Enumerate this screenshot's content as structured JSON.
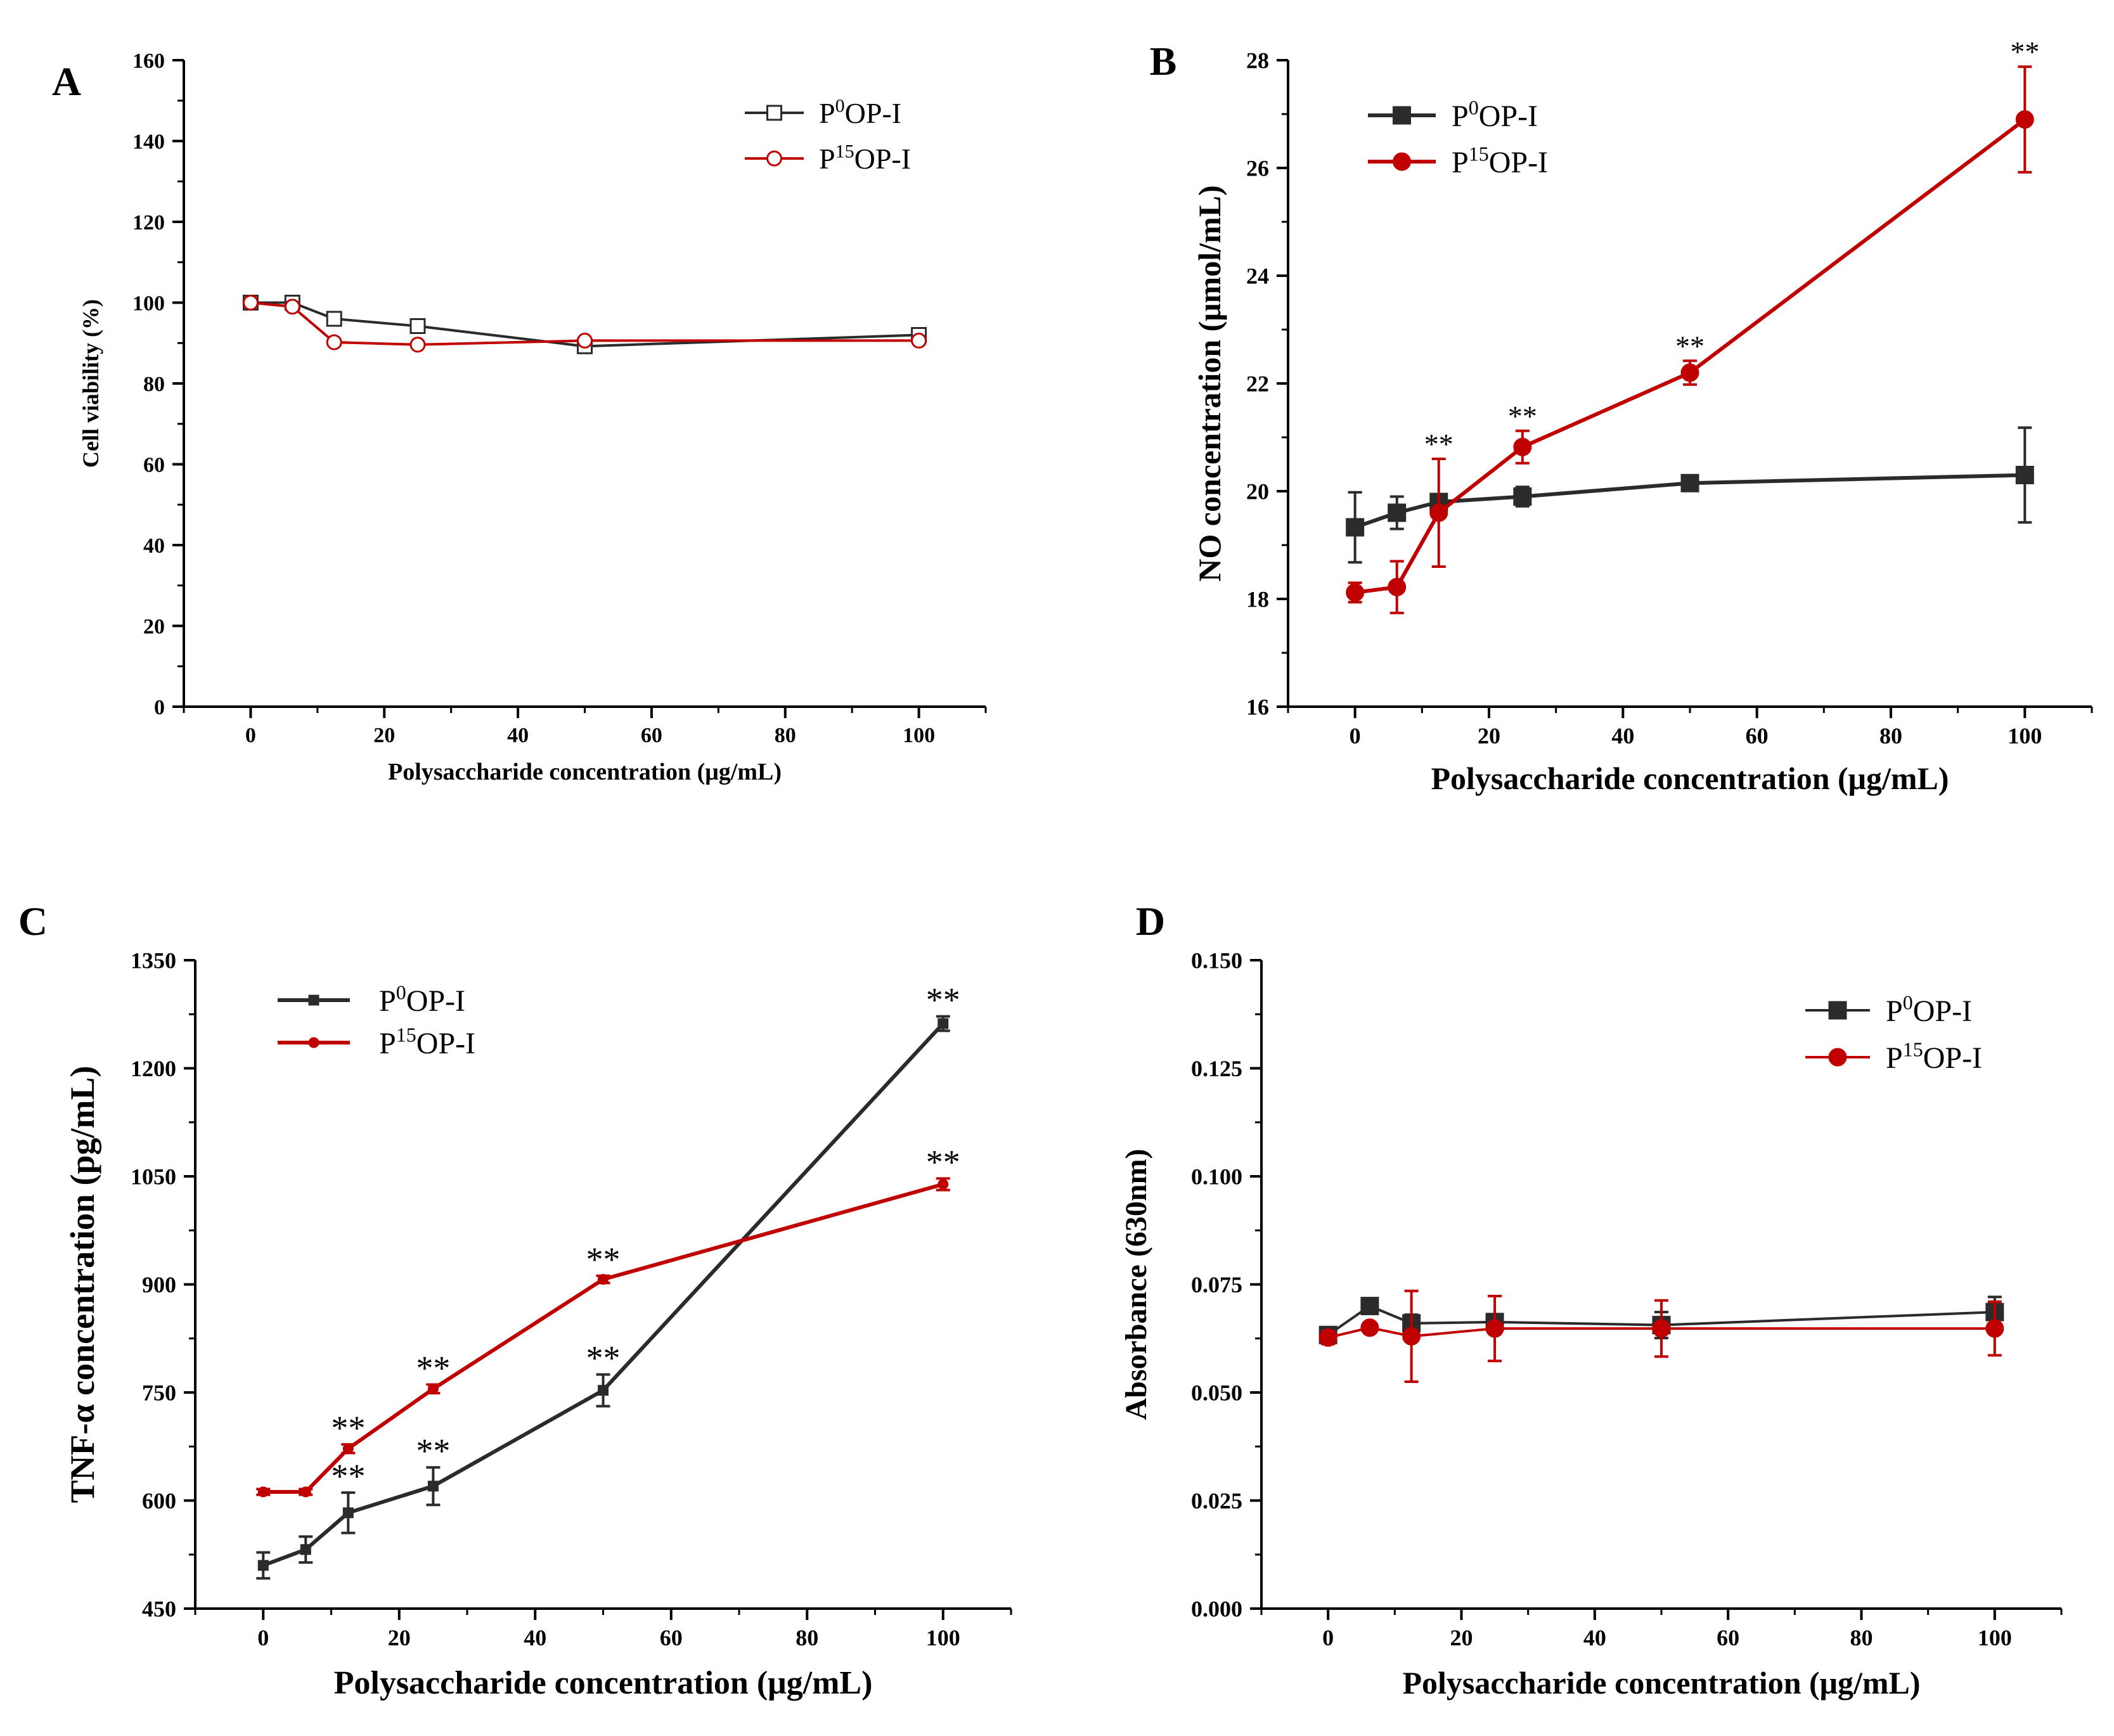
{
  "figure": {
    "series_names": [
      "P0OP-I",
      "P15OP-I"
    ],
    "colors": {
      "black_series": "#2b2b2b",
      "red_series": "#c00000",
      "axis": "#000000"
    }
  },
  "chart_data": [
    {
      "panel_label": "A",
      "type": "line",
      "xlabel": "Polysaccharide concentration (μg/mL)",
      "ylabel": "Cell viability (%)",
      "xlim": [
        -10,
        110
      ],
      "ylim": [
        0,
        160
      ],
      "xticks": [
        0,
        20,
        40,
        60,
        80,
        100
      ],
      "yticks": [
        0,
        20,
        40,
        60,
        80,
        100,
        120,
        140,
        160
      ],
      "ytick_labels": [
        "0",
        "20",
        "40",
        "60",
        "80",
        "100",
        "120",
        "140",
        "160"
      ],
      "legend_position": "top-right",
      "marker_style": "open",
      "series": [
        {
          "name": "P0OP-I",
          "base": "P",
          "sup": "0",
          "rest": "OP-I",
          "color": "#2b2b2b",
          "marker": "square",
          "x": [
            0,
            6.25,
            12.5,
            25,
            50,
            100
          ],
          "y": [
            100,
            100,
            96,
            94.2,
            89.2,
            92
          ],
          "err": [
            0,
            0,
            0,
            0,
            0,
            0
          ],
          "sig": [
            "",
            "",
            "",
            "",
            "",
            ""
          ]
        },
        {
          "name": "P15OP-I",
          "base": "P",
          "sup": "15",
          "rest": "OP-I",
          "color": "#c00000",
          "marker": "circle",
          "x": [
            0,
            6.25,
            12.5,
            25,
            50,
            100
          ],
          "y": [
            100,
            99,
            90.2,
            89.6,
            90.6,
            90.6
          ],
          "err": [
            0,
            0,
            0,
            0,
            0,
            0
          ],
          "sig": [
            "",
            "",
            "",
            "",
            "",
            ""
          ]
        }
      ]
    },
    {
      "panel_label": "B",
      "type": "line",
      "xlabel": "Polysaccharide concentration (μg/mL)",
      "ylabel": "NO concentration (μmol/mL)",
      "xlim": [
        -10,
        110
      ],
      "ylim": [
        16,
        28
      ],
      "xticks": [
        0,
        20,
        40,
        60,
        80,
        100
      ],
      "yticks": [
        16,
        18,
        20,
        22,
        24,
        26,
        28
      ],
      "ytick_labels": [
        "16",
        "18",
        "20",
        "22",
        "24",
        "26",
        "28"
      ],
      "legend_position": "top-left",
      "marker_style": "filled",
      "series": [
        {
          "name": "P0OP-I",
          "base": "P",
          "sup": "0",
          "rest": "OP-I",
          "color": "#2b2b2b",
          "marker": "square",
          "x": [
            0,
            6.25,
            12.5,
            25,
            50,
            100
          ],
          "y": [
            19.33,
            19.6,
            19.8,
            19.9,
            20.15,
            20.3
          ],
          "err": [
            0.65,
            0.3,
            0.1,
            0.18,
            0.12,
            0.88
          ],
          "sig": [
            "",
            "",
            "",
            "",
            "",
            ""
          ]
        },
        {
          "name": "P15OP-I",
          "base": "P",
          "sup": "15",
          "rest": "OP-I",
          "color": "#c00000",
          "marker": "circle",
          "x": [
            0,
            6.25,
            12.5,
            25,
            50,
            100
          ],
          "y": [
            18.12,
            18.22,
            19.6,
            20.82,
            22.2,
            26.9
          ],
          "err": [
            0.18,
            0.48,
            1.0,
            0.3,
            0.22,
            0.98
          ],
          "sig": [
            "",
            "",
            "**",
            "**",
            "**",
            "**"
          ]
        }
      ]
    },
    {
      "panel_label": "C",
      "type": "line",
      "xlabel": "Polysaccharide concentration (μg/mL)",
      "ylabel": "TNF-α concentration (pg/mL)",
      "xlim": [
        -10,
        110
      ],
      "ylim": [
        450,
        1350
      ],
      "xticks": [
        0,
        20,
        40,
        60,
        80,
        100
      ],
      "yticks": [
        450,
        600,
        750,
        900,
        1050,
        1200,
        1350
      ],
      "ytick_labels": [
        "450",
        "600",
        "750",
        "900",
        "1050",
        "1200",
        "1350"
      ],
      "legend_position": "top-left",
      "marker_style": "small",
      "series": [
        {
          "name": "P0OP-I",
          "base": "P",
          "sup": "0",
          "rest": "OP-I",
          "color": "#2b2b2b",
          "marker": "square",
          "x": [
            0,
            6.25,
            12.5,
            25,
            50,
            100
          ],
          "y": [
            510,
            532,
            583,
            620,
            753,
            1262
          ],
          "err": [
            18,
            18,
            28,
            26,
            22,
            10
          ],
          "sig": [
            "",
            "",
            "**",
            "**",
            "**",
            "**"
          ]
        },
        {
          "name": "P15OP-I",
          "base": "P",
          "sup": "15",
          "rest": "OP-I",
          "color": "#c00000",
          "marker": "circle",
          "x": [
            0,
            6.25,
            12.5,
            25,
            50,
            100
          ],
          "y": [
            612,
            612,
            672,
            755,
            907,
            1039
          ],
          "err": [
            4,
            4,
            6,
            6,
            5,
            8
          ],
          "sig": [
            "",
            "",
            "**",
            "**",
            "**",
            "**"
          ]
        }
      ]
    },
    {
      "panel_label": "D",
      "type": "line",
      "xlabel": "Polysaccharide concentration (μg/mL)",
      "ylabel": "Absorbance (630nm)",
      "xlim": [
        -10,
        110
      ],
      "ylim": [
        0,
        0.15
      ],
      "xticks": [
        0,
        20,
        40,
        60,
        80,
        100
      ],
      "yticks": [
        0,
        0.025,
        0.05,
        0.075,
        0.1,
        0.125,
        0.15
      ],
      "ytick_labels": [
        "0.000",
        "0.025",
        "0.050",
        "0.075",
        "0.100",
        "0.125",
        "0.150"
      ],
      "legend_position": "top-right",
      "marker_style": "filled",
      "series": [
        {
          "name": "P0OP-I",
          "base": "P",
          "sup": "0",
          "rest": "OP-I",
          "color": "#2b2b2b",
          "marker": "square",
          "x": [
            0,
            6.25,
            12.5,
            25,
            50,
            100
          ],
          "y": [
            0.0633,
            0.07,
            0.066,
            0.0663,
            0.0656,
            0.0686
          ],
          "err": [
            0.0015,
            0.0008,
            0.002,
            0.0015,
            0.003,
            0.0035
          ],
          "sig": [
            "",
            "",
            "",
            "",
            "",
            ""
          ]
        },
        {
          "name": "P15OP-I",
          "base": "P",
          "sup": "15",
          "rest": "OP-I",
          "color": "#c00000",
          "marker": "circle",
          "x": [
            0,
            6.25,
            12.5,
            25,
            50,
            100
          ],
          "y": [
            0.0627,
            0.065,
            0.063,
            0.0648,
            0.0648,
            0.0648
          ],
          "err": [
            0.0015,
            0.0008,
            0.0105,
            0.0075,
            0.0065,
            0.0062
          ],
          "sig": [
            "",
            "",
            "",
            "",
            "",
            ""
          ]
        }
      ]
    }
  ]
}
